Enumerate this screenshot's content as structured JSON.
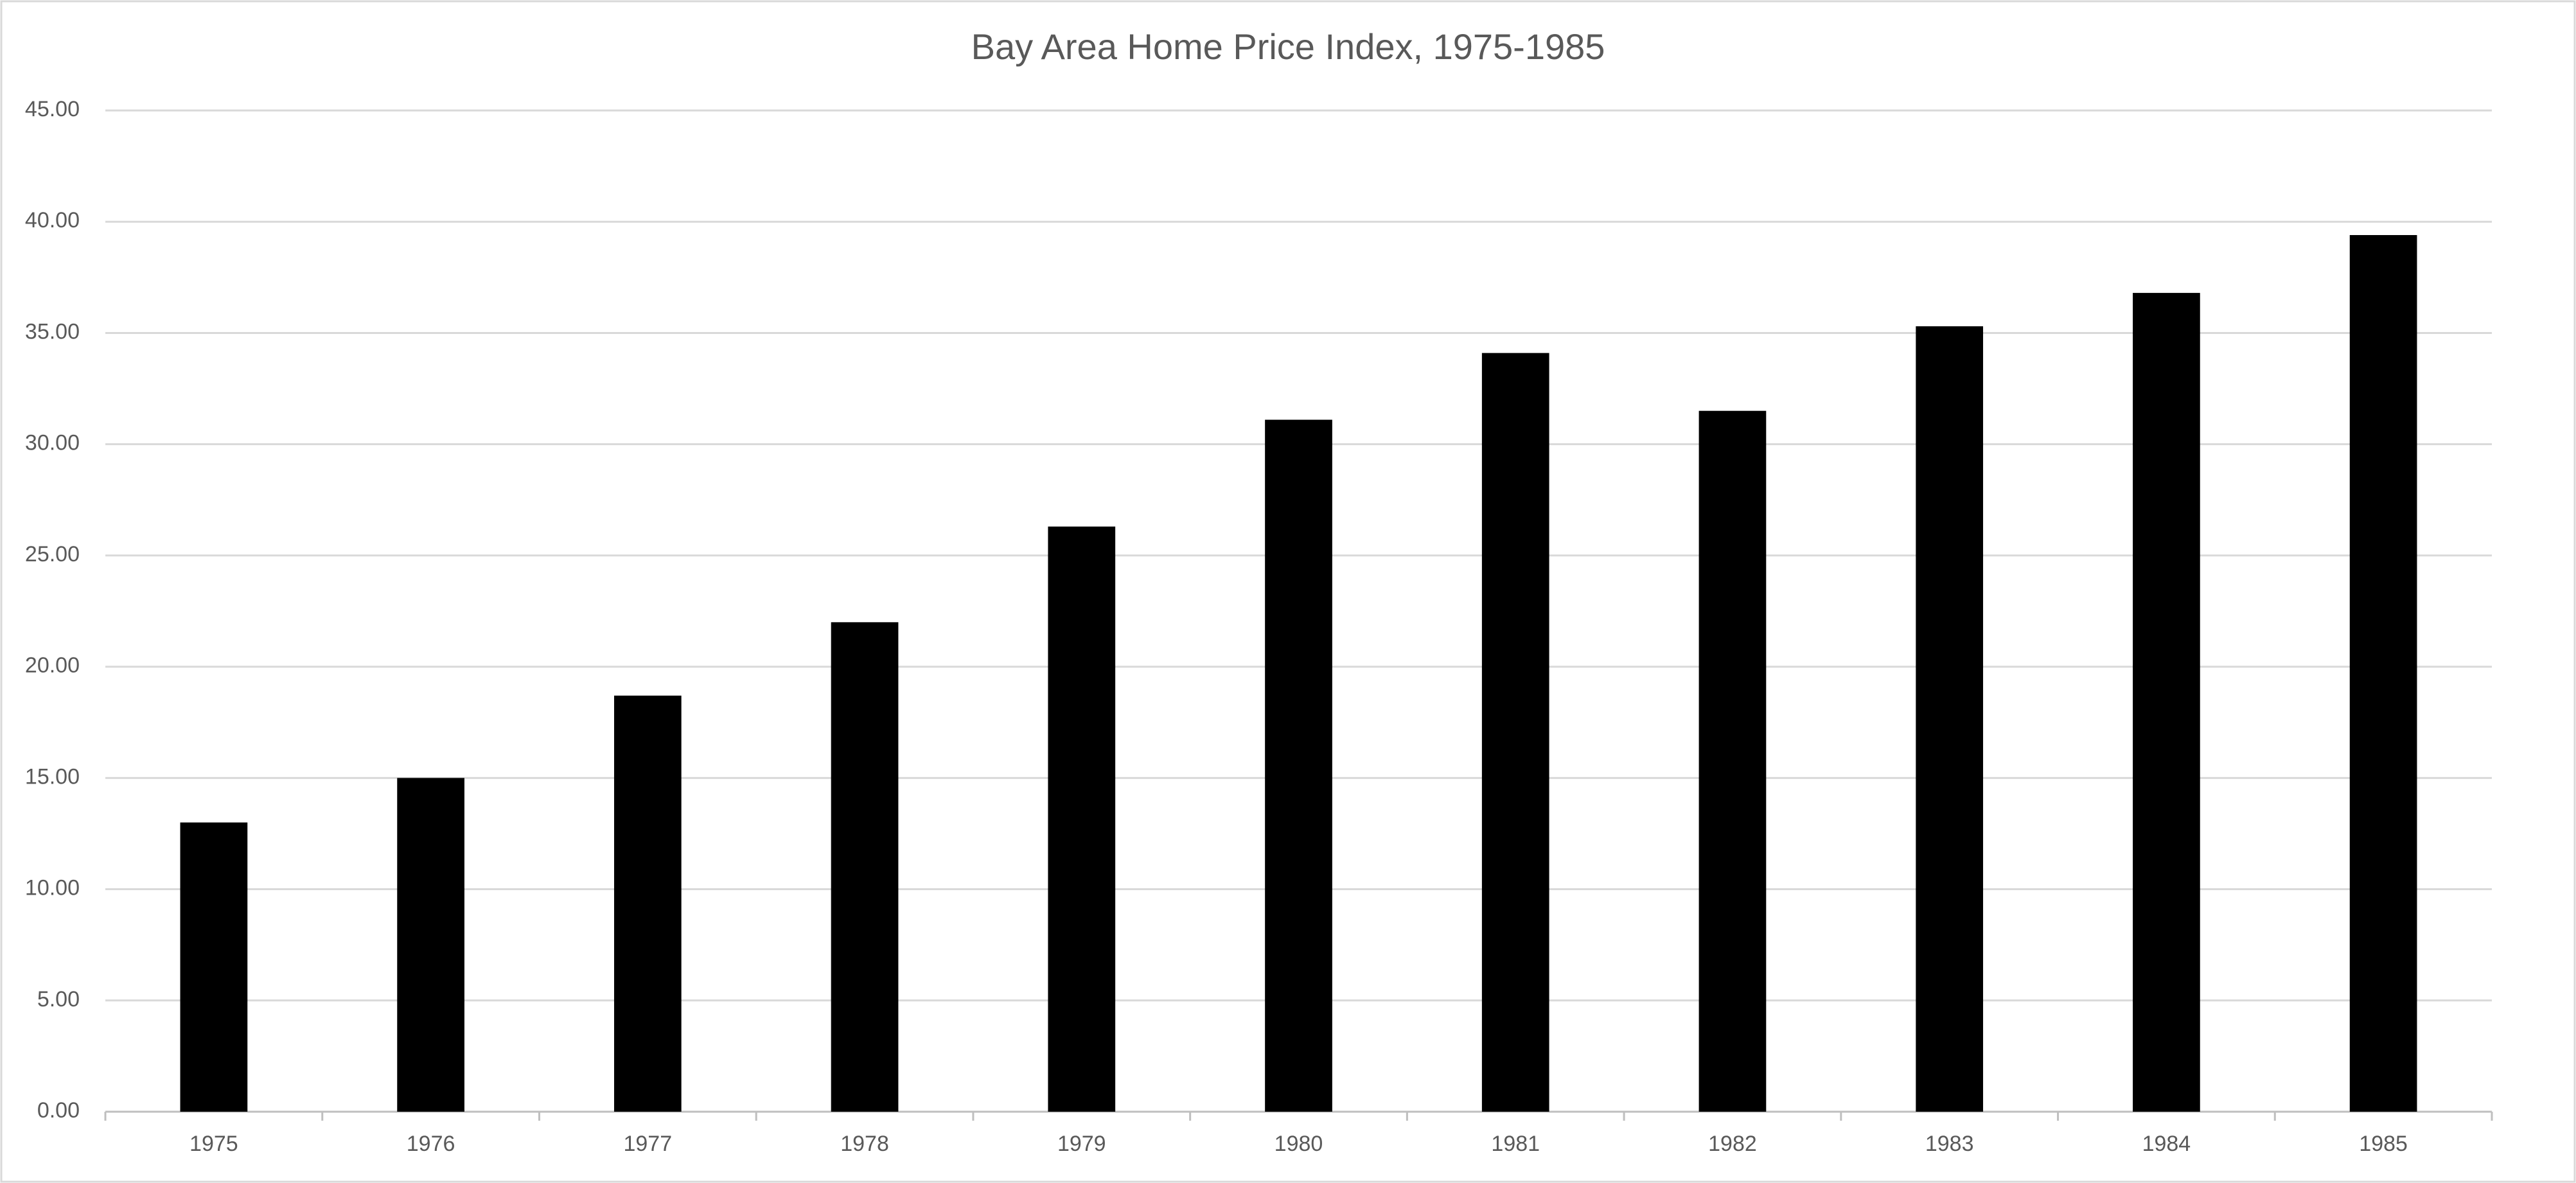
{
  "chart_data": {
    "type": "bar",
    "title": "Bay Area Home Price Index, 1975-1985",
    "categories": [
      "1975",
      "1976",
      "1977",
      "1978",
      "1979",
      "1980",
      "1981",
      "1982",
      "1983",
      "1984",
      "1985"
    ],
    "values": [
      13.0,
      15.0,
      18.7,
      22.0,
      26.3,
      31.1,
      34.1,
      31.5,
      35.3,
      36.8,
      39.4
    ],
    "color": "#000000",
    "ylim": [
      0,
      45
    ],
    "yticks": [
      {
        "value": 0,
        "label": "0.00"
      },
      {
        "value": 5,
        "label": "5.00"
      },
      {
        "value": 10,
        "label": "10.00"
      },
      {
        "value": 15,
        "label": "15.00"
      },
      {
        "value": 20,
        "label": "20.00"
      },
      {
        "value": 25,
        "label": "25.00"
      },
      {
        "value": 30,
        "label": "30.00"
      },
      {
        "value": 35,
        "label": "35.00"
      },
      {
        "value": 40,
        "label": "40.00"
      },
      {
        "value": 45,
        "label": "45.00"
      }
    ],
    "grid": true
  }
}
